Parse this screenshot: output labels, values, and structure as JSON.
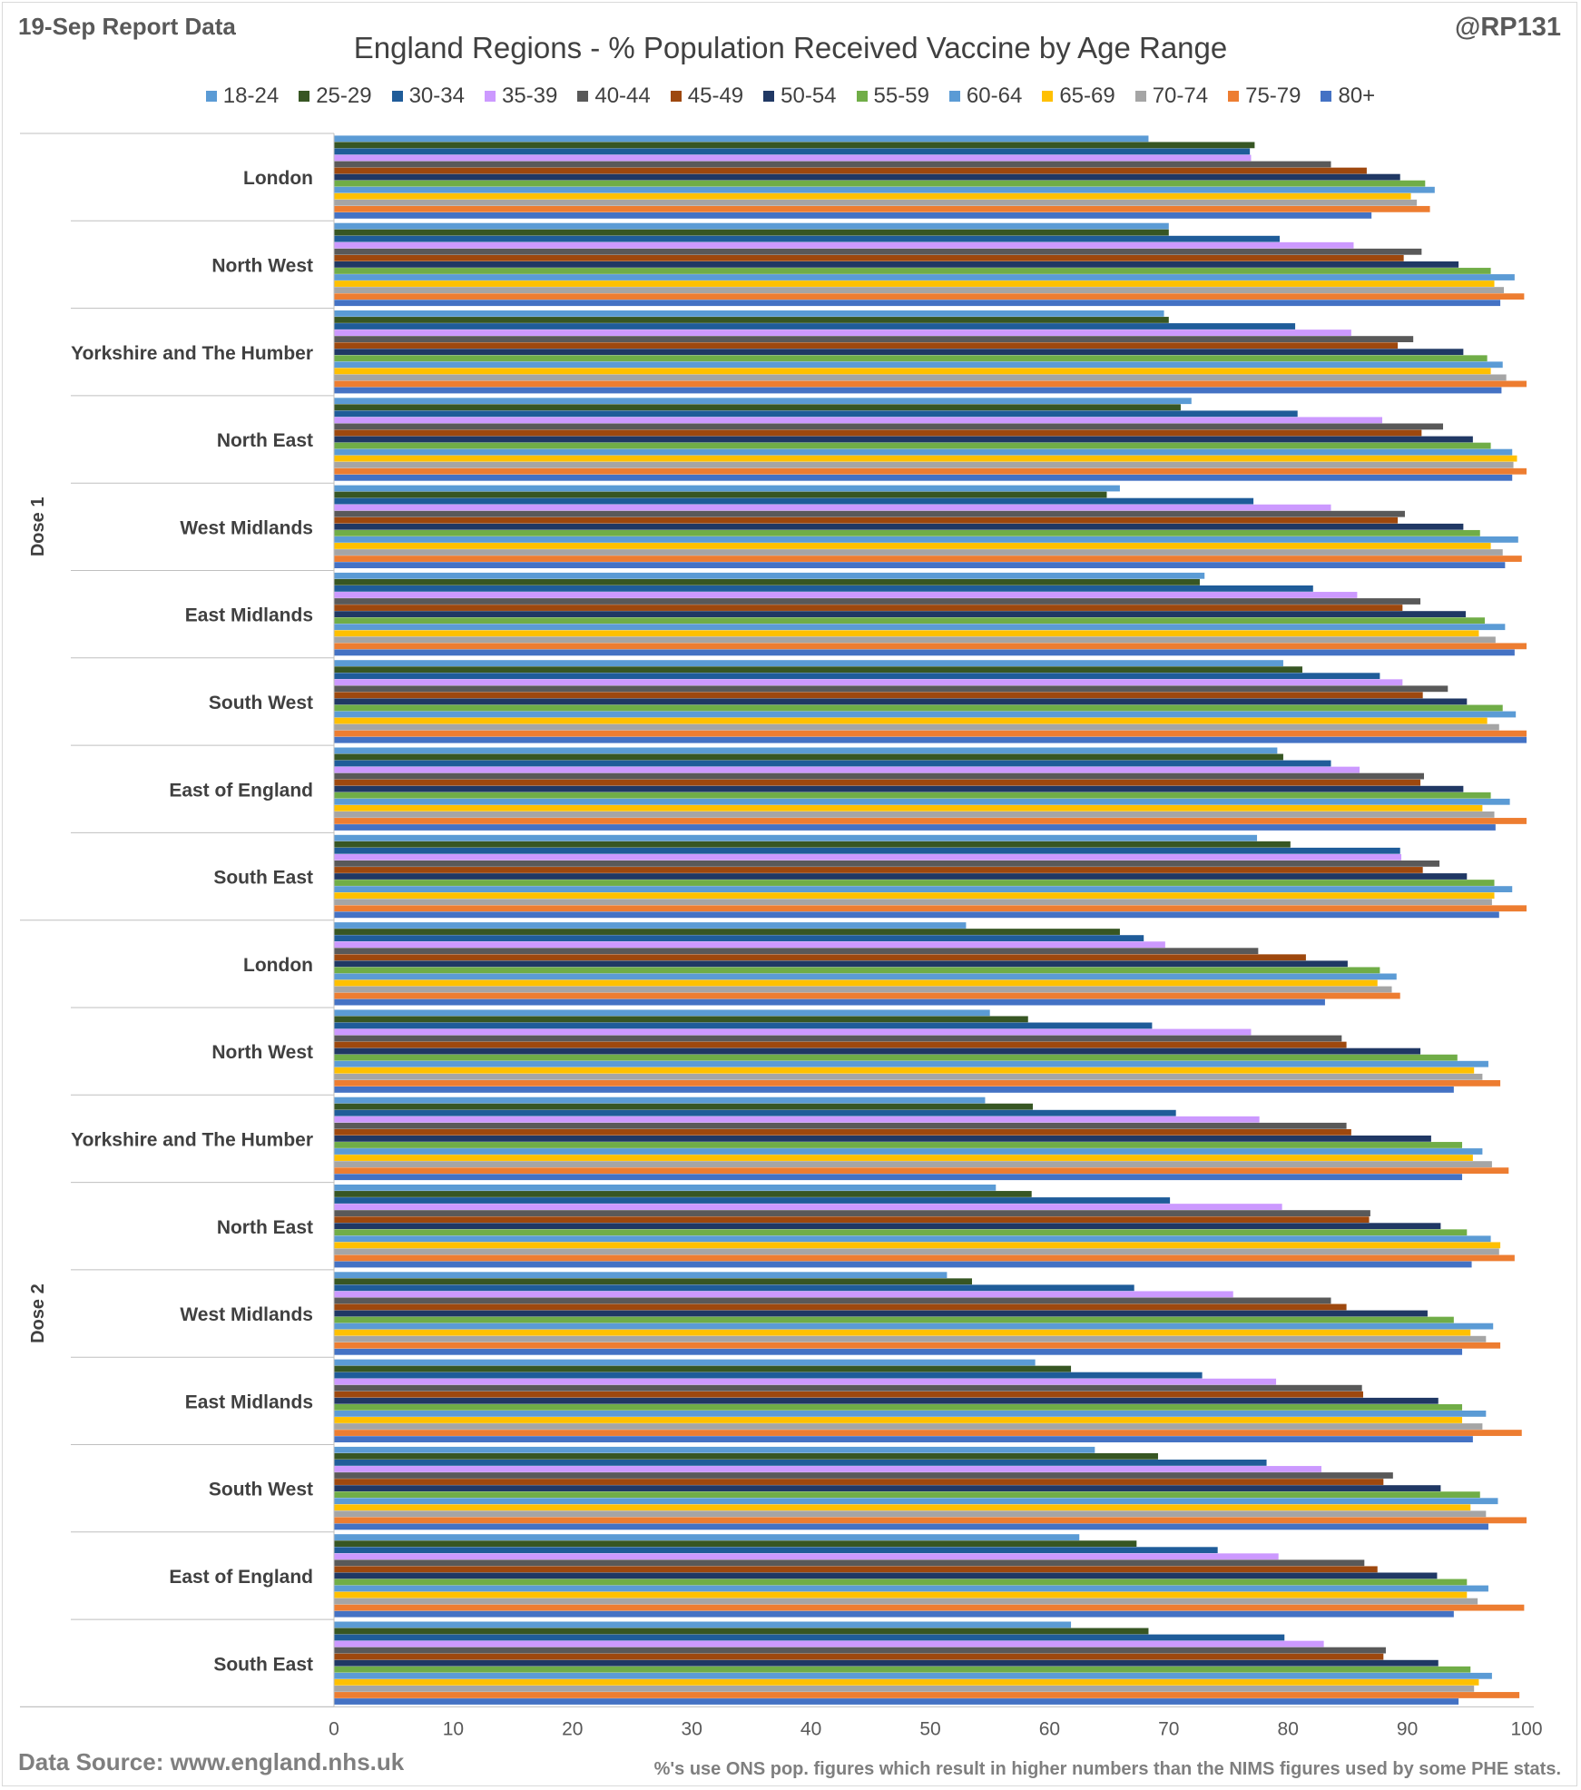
{
  "header": {
    "report_label": "19-Sep Report Data",
    "author": "@RP131"
  },
  "footer": {
    "source": "Data Source: www.england.nhs.uk",
    "note": "%'s use ONS pop. figures which result in higher numbers than the NIMS figures used by some PHE stats."
  },
  "chart_data": {
    "type": "bar",
    "orientation": "horizontal",
    "title": "England Regions - % Population Received Vaccine by Age Range",
    "xlabel": "",
    "ylabel": "",
    "xlim": [
      0,
      100
    ],
    "x_ticks": [
      "0",
      "10",
      "20",
      "30",
      "40",
      "50",
      "60",
      "70",
      "80",
      "90",
      "100"
    ],
    "legend_position": "top",
    "grid": false,
    "groups": [
      "Dose 1",
      "Dose 2"
    ],
    "categories": [
      "London",
      "North West",
      "Yorkshire and The Humber",
      "North East",
      "West Midlands",
      "East Midlands",
      "South West",
      "East of England",
      "South East"
    ],
    "series": [
      {
        "name": "18-24",
        "color": "#5B9BD5",
        "dose1": [
          68.3,
          70.0,
          69.6,
          71.9,
          65.9,
          73.0,
          79.6,
          79.1,
          77.4
        ],
        "dose2": [
          53.0,
          55.0,
          54.6,
          55.5,
          51.4,
          58.8,
          63.8,
          62.5,
          61.8
        ]
      },
      {
        "name": "25-29",
        "color": "#375623",
        "dose1": [
          77.2,
          70.0,
          70.0,
          71.0,
          64.8,
          72.6,
          81.2,
          79.6,
          80.2
        ],
        "dose2": [
          65.9,
          58.2,
          58.6,
          58.5,
          53.5,
          61.8,
          69.1,
          67.3,
          68.3
        ]
      },
      {
        "name": "30-34",
        "color": "#1F5C99",
        "dose1": [
          76.8,
          79.3,
          80.6,
          80.8,
          77.1,
          82.1,
          87.7,
          83.6,
          89.4
        ],
        "dose2": [
          67.9,
          68.6,
          70.6,
          70.1,
          67.1,
          72.8,
          78.2,
          74.1,
          79.7
        ]
      },
      {
        "name": "35-39",
        "color": "#CC99FF",
        "dose1": [
          76.9,
          85.5,
          85.3,
          87.9,
          83.6,
          85.8,
          89.6,
          86.0,
          89.5
        ],
        "dose2": [
          69.7,
          76.9,
          77.6,
          79.5,
          75.4,
          79.0,
          82.8,
          79.2,
          83.0
        ]
      },
      {
        "name": "40-44",
        "color": "#595959",
        "dose1": [
          83.6,
          91.2,
          90.5,
          93.0,
          89.8,
          91.1,
          93.4,
          91.4,
          92.7
        ],
        "dose2": [
          77.5,
          84.5,
          84.9,
          86.9,
          83.6,
          86.2,
          88.8,
          86.4,
          88.2
        ]
      },
      {
        "name": "45-49",
        "color": "#9E480E",
        "dose1": [
          86.6,
          89.7,
          89.2,
          91.2,
          89.2,
          89.6,
          91.3,
          91.1,
          91.3
        ],
        "dose2": [
          81.5,
          84.9,
          85.3,
          86.8,
          84.9,
          86.3,
          88.0,
          87.5,
          88.0
        ]
      },
      {
        "name": "50-54",
        "color": "#203864",
        "dose1": [
          89.4,
          94.3,
          94.7,
          95.5,
          94.7,
          94.9,
          95.0,
          94.7,
          95.0
        ],
        "dose2": [
          85.0,
          91.1,
          92.0,
          92.8,
          91.7,
          92.6,
          92.8,
          92.5,
          92.6
        ]
      },
      {
        "name": "55-59",
        "color": "#70AD47",
        "dose1": [
          91.5,
          97.0,
          96.7,
          97.0,
          96.1,
          96.5,
          98.0,
          97.0,
          97.3
        ],
        "dose2": [
          87.7,
          94.2,
          94.6,
          95.0,
          93.9,
          94.6,
          96.1,
          95.0,
          95.3
        ]
      },
      {
        "name": "60-64",
        "color": "#5B9BD5",
        "dose1": [
          92.3,
          99.0,
          98.0,
          98.8,
          99.3,
          98.2,
          99.1,
          98.6,
          98.8
        ],
        "dose2": [
          89.1,
          96.8,
          96.3,
          97.0,
          97.2,
          96.6,
          97.6,
          96.8,
          97.1
        ]
      },
      {
        "name": "65-69",
        "color": "#FFC000",
        "dose1": [
          90.3,
          97.3,
          97.0,
          99.2,
          97.0,
          96.0,
          96.7,
          96.3,
          97.3
        ],
        "dose2": [
          87.5,
          95.6,
          95.5,
          97.8,
          95.3,
          94.6,
          95.3,
          95.0,
          96.0
        ]
      },
      {
        "name": "70-74",
        "color": "#A5A5A5",
        "dose1": [
          90.8,
          98.1,
          98.3,
          98.9,
          98.0,
          97.4,
          97.7,
          97.3,
          97.1
        ],
        "dose2": [
          88.7,
          96.3,
          97.1,
          97.7,
          96.6,
          96.3,
          96.6,
          95.9,
          95.6
        ]
      },
      {
        "name": "75-79",
        "color": "#ED7D31",
        "dose1": [
          91.9,
          99.8,
          100.0,
          100.0,
          99.6,
          100.0,
          100.0,
          100.0,
          100.0
        ],
        "dose2": [
          89.4,
          97.8,
          98.5,
          99.0,
          97.8,
          99.6,
          100.0,
          99.8,
          99.4
        ]
      },
      {
        "name": "80+",
        "color": "#4472C4",
        "dose1": [
          87.0,
          97.8,
          97.9,
          98.8,
          98.2,
          99.0,
          100.0,
          97.4,
          97.7
        ],
        "dose2": [
          83.1,
          93.9,
          94.6,
          95.4,
          94.6,
          95.5,
          96.8,
          93.9,
          94.3
        ]
      }
    ]
  }
}
